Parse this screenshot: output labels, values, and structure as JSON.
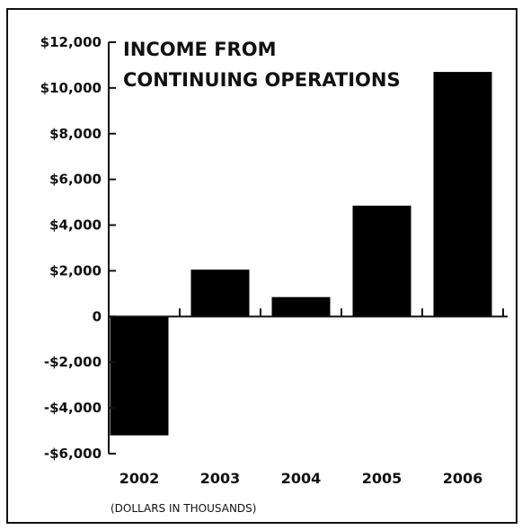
{
  "chart_data": {
    "type": "bar",
    "title_lines": [
      "INCOME FROM",
      "CONTINUING OPERATIONS"
    ],
    "categories": [
      "2002",
      "2003",
      "2004",
      "2005",
      "2006"
    ],
    "values": [
      -5200,
      2050,
      850,
      4850,
      10700
    ],
    "ylim": [
      -6000,
      12000
    ],
    "y_ticks": [
      -6000,
      -4000,
      -2000,
      0,
      2000,
      4000,
      6000,
      8000,
      10000,
      12000
    ],
    "y_tick_labels": [
      "-$6,000",
      "-$4,000",
      "-$2,000",
      "0",
      "$2,000",
      "$4,000",
      "$6,000",
      "$8,000",
      "$10,000",
      "$12,000"
    ],
    "note": "(DOLLARS IN THOUSANDS)",
    "bar_color": "#000000",
    "grid": false
  }
}
